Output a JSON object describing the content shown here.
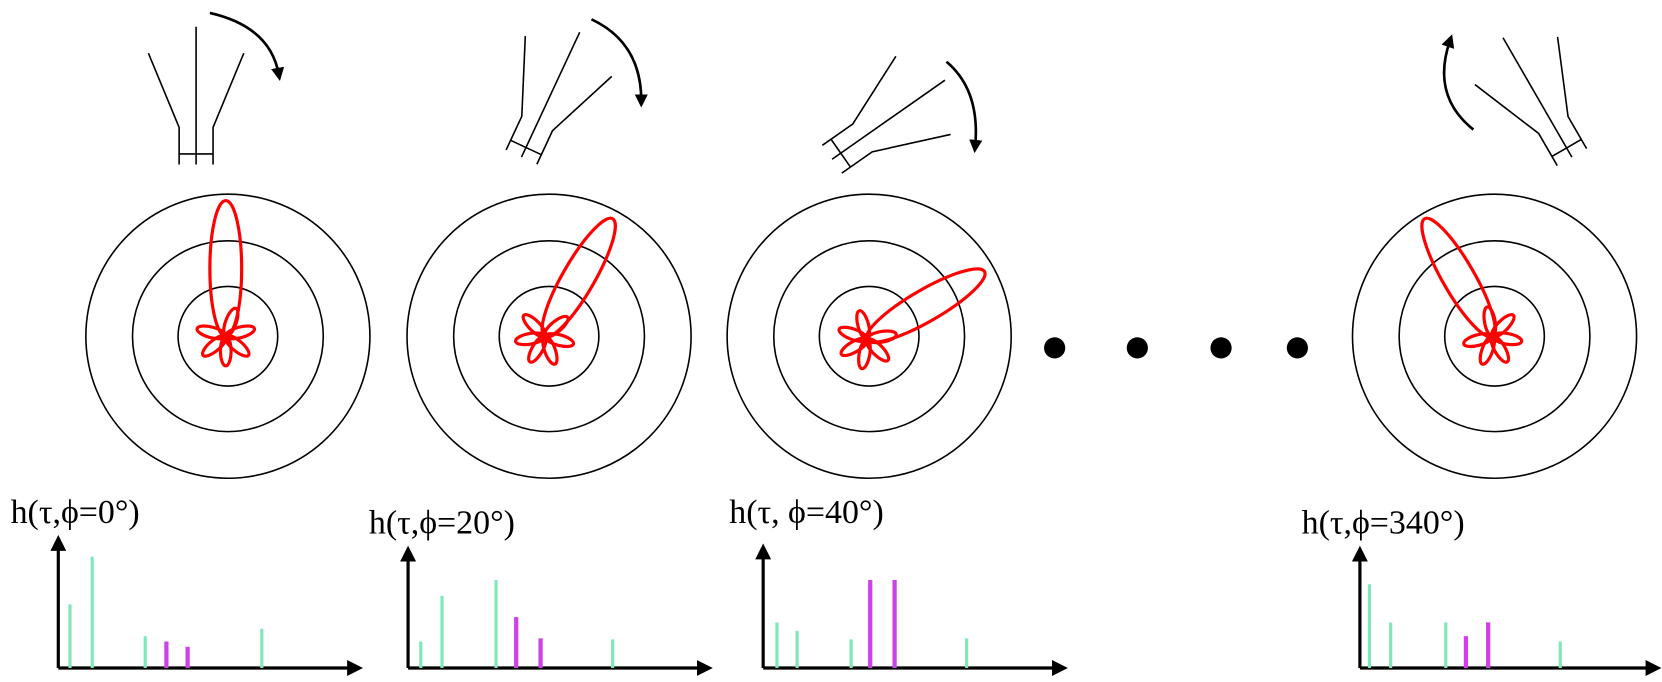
{
  "panels": [
    {
      "label": "h(τ,ϕ=0°)"
    },
    {
      "label": "h(τ,ϕ=20°)"
    },
    {
      "label": "h(τ, ϕ=40°)"
    },
    {
      "label": "h(τ,ϕ=340°)"
    }
  ]
}
